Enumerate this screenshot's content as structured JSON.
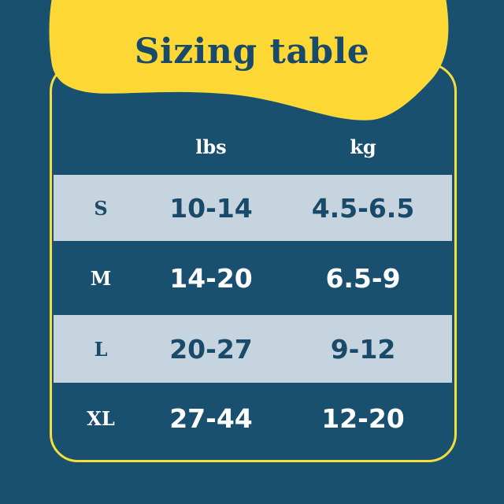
{
  "title": "Sizing table",
  "colors": {
    "background": "#194f6f",
    "accent": "#f5dd3a",
    "light_row": "#c5d4de",
    "text_dark": "#1a4a6a"
  },
  "table": {
    "headers": [
      "",
      "lbs",
      "kg"
    ],
    "rows": [
      {
        "size": "S",
        "lbs": "10-14",
        "kg": "4.5-6.5"
      },
      {
        "size": "M",
        "lbs": "14-20",
        "kg": "6.5-9"
      },
      {
        "size": "L",
        "lbs": "20-27",
        "kg": "9-12"
      },
      {
        "size": "XL",
        "lbs": "27-44",
        "kg": "12-20"
      }
    ]
  }
}
